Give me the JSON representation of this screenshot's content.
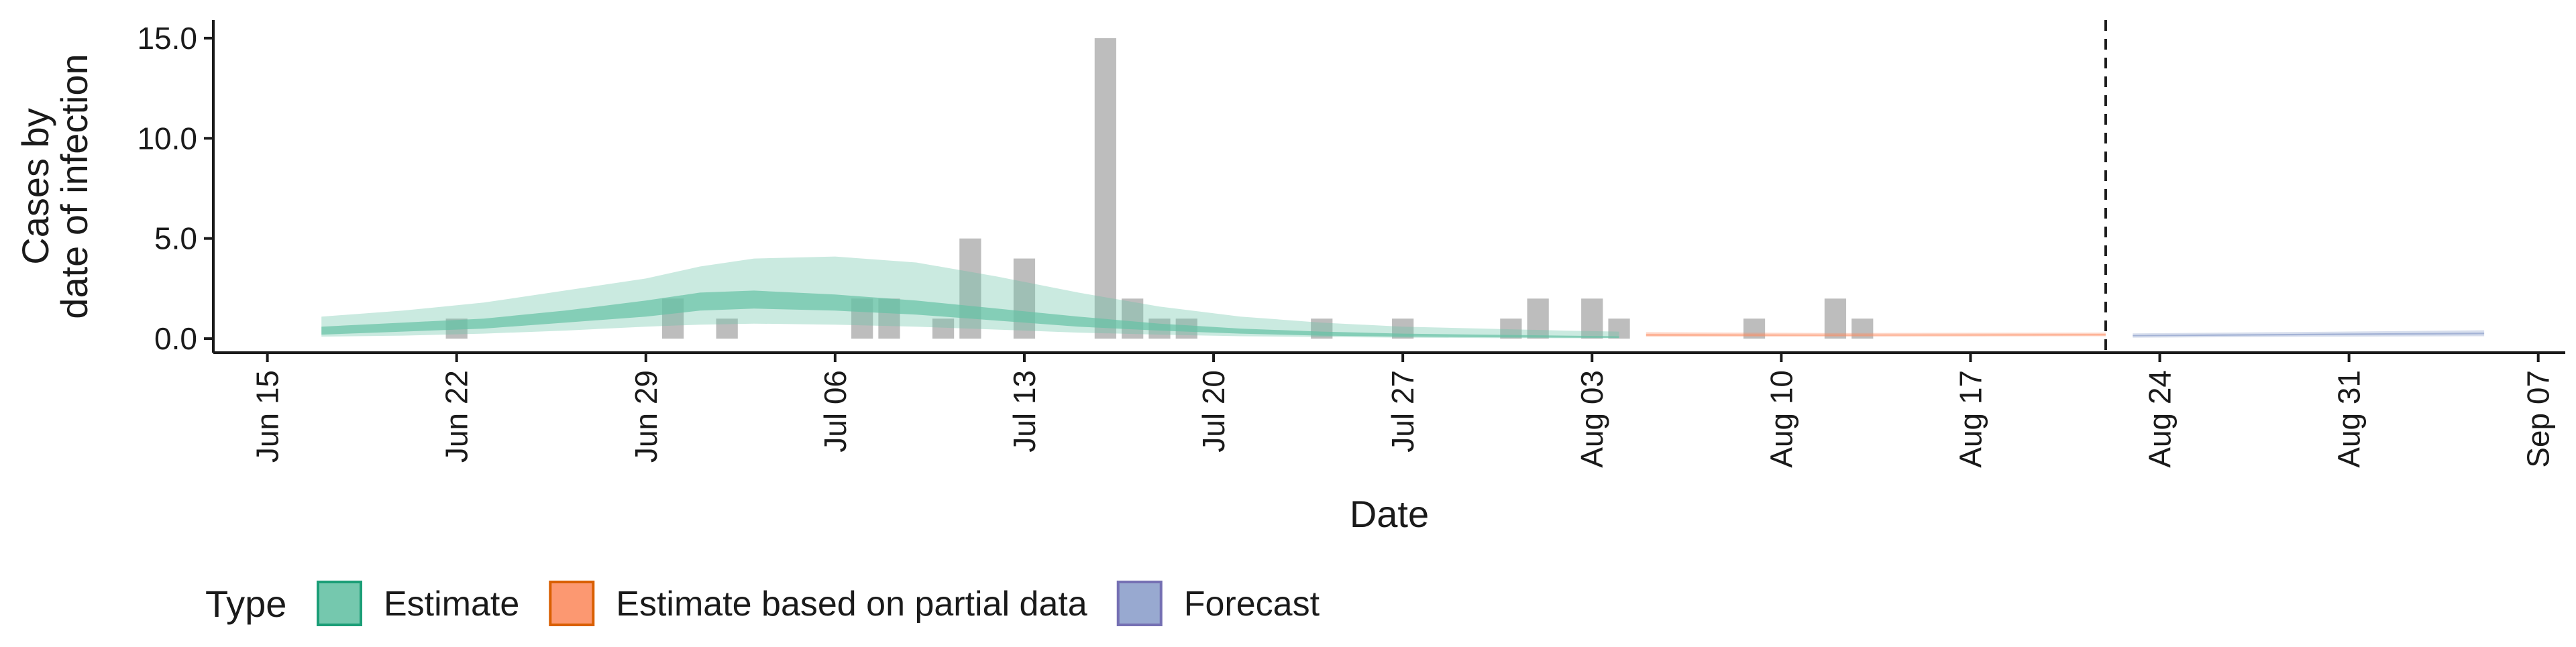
{
  "chart_data": {
    "type": "area",
    "xlabel": "Date",
    "ylabel_lines": [
      "Cases by",
      "date of infection"
    ],
    "xlim": [
      "2020-06-13",
      "2020-09-08"
    ],
    "ylim": [
      -0.7,
      15.9
    ],
    "y_ticks": [
      0,
      5,
      10,
      15
    ],
    "y_tick_labels": [
      "0.0",
      "5.0",
      "10.0",
      "15.0"
    ],
    "x_ticks": [
      "2020-06-15",
      "2020-06-22",
      "2020-06-29",
      "2020-07-06",
      "2020-07-13",
      "2020-07-20",
      "2020-07-27",
      "2020-08-03",
      "2020-08-10",
      "2020-08-17",
      "2020-08-24",
      "2020-08-31",
      "2020-09-07"
    ],
    "x_tick_labels": [
      "Jun 15",
      "Jun 22",
      "Jun 29",
      "Jul 06",
      "Jul 13",
      "Jul 20",
      "Jul 27",
      "Aug 03",
      "Aug 10",
      "Aug 17",
      "Aug 24",
      "Aug 31",
      "Sep 07"
    ],
    "reference_line_date": "2020-08-22",
    "grid": false,
    "legend_position": "bottom-left",
    "legend": {
      "title": "Type",
      "items": [
        {
          "label": "Estimate",
          "fill": "#66c2a5",
          "stroke": "#1b9e77"
        },
        {
          "label": "Estimate based on partial data",
          "fill": "#fc8d62",
          "stroke": "#d95f02"
        },
        {
          "label": "Forecast",
          "fill": "#8da0cb",
          "stroke": "#7570b3"
        }
      ]
    },
    "observed_cases": {
      "color": "#bdbdbd",
      "x": [
        "2020-06-22",
        "2020-06-30",
        "2020-07-02",
        "2020-07-07",
        "2020-07-08",
        "2020-07-10",
        "2020-07-11",
        "2020-07-13",
        "2020-07-16",
        "2020-07-17",
        "2020-07-18",
        "2020-07-19",
        "2020-07-24",
        "2020-07-27",
        "2020-07-31",
        "2020-08-01",
        "2020-08-03",
        "2020-08-04",
        "2020-08-09",
        "2020-08-12",
        "2020-08-13"
      ],
      "values": [
        1,
        2,
        1,
        2,
        2,
        1,
        5,
        4,
        15,
        2,
        1,
        1,
        1,
        1,
        1,
        2,
        2,
        1,
        1,
        2,
        1
      ]
    },
    "series": [
      {
        "name": "Estimate",
        "fill": "#66c2a5",
        "x": [
          "2020-06-17",
          "2020-06-20",
          "2020-06-23",
          "2020-06-26",
          "2020-06-29",
          "2020-07-01",
          "2020-07-03",
          "2020-07-06",
          "2020-07-09",
          "2020-07-12",
          "2020-07-15",
          "2020-07-18",
          "2020-07-21",
          "2020-07-24",
          "2020-07-27",
          "2020-07-30",
          "2020-08-02",
          "2020-08-04"
        ],
        "lower_90": [
          0.1,
          0.15,
          0.25,
          0.4,
          0.6,
          0.7,
          0.75,
          0.7,
          0.6,
          0.45,
          0.3,
          0.2,
          0.12,
          0.08,
          0.05,
          0.03,
          0.02,
          0.02
        ],
        "lower_50": [
          0.2,
          0.35,
          0.5,
          0.8,
          1.1,
          1.4,
          1.5,
          1.4,
          1.2,
          0.9,
          0.6,
          0.4,
          0.25,
          0.15,
          0.1,
          0.07,
          0.05,
          0.04
        ],
        "upper_50": [
          0.6,
          0.8,
          1.0,
          1.4,
          1.9,
          2.3,
          2.4,
          2.2,
          1.9,
          1.5,
          1.1,
          0.75,
          0.5,
          0.35,
          0.25,
          0.2,
          0.15,
          0.12
        ],
        "upper_90": [
          1.1,
          1.4,
          1.8,
          2.4,
          3.0,
          3.6,
          4.0,
          4.1,
          3.8,
          3.1,
          2.3,
          1.6,
          1.1,
          0.8,
          0.6,
          0.5,
          0.4,
          0.35
        ]
      },
      {
        "name": "Estimate based on partial data",
        "fill": "#fc8d62",
        "x": [
          "2020-08-05",
          "2020-08-12",
          "2020-08-22"
        ],
        "lower_90": [
          0.1,
          0.1,
          0.12
        ],
        "lower_50": [
          0.15,
          0.15,
          0.16
        ],
        "upper_50": [
          0.22,
          0.2,
          0.22
        ],
        "upper_90": [
          0.32,
          0.28,
          0.3
        ]
      },
      {
        "name": "Forecast",
        "fill": "#8da0cb",
        "x": [
          "2020-08-23",
          "2020-08-30",
          "2020-09-05"
        ],
        "lower_90": [
          0.05,
          0.1,
          0.12
        ],
        "lower_50": [
          0.12,
          0.17,
          0.22
        ],
        "upper_50": [
          0.18,
          0.25,
          0.3
        ],
        "upper_90": [
          0.26,
          0.34,
          0.42
        ]
      }
    ]
  }
}
